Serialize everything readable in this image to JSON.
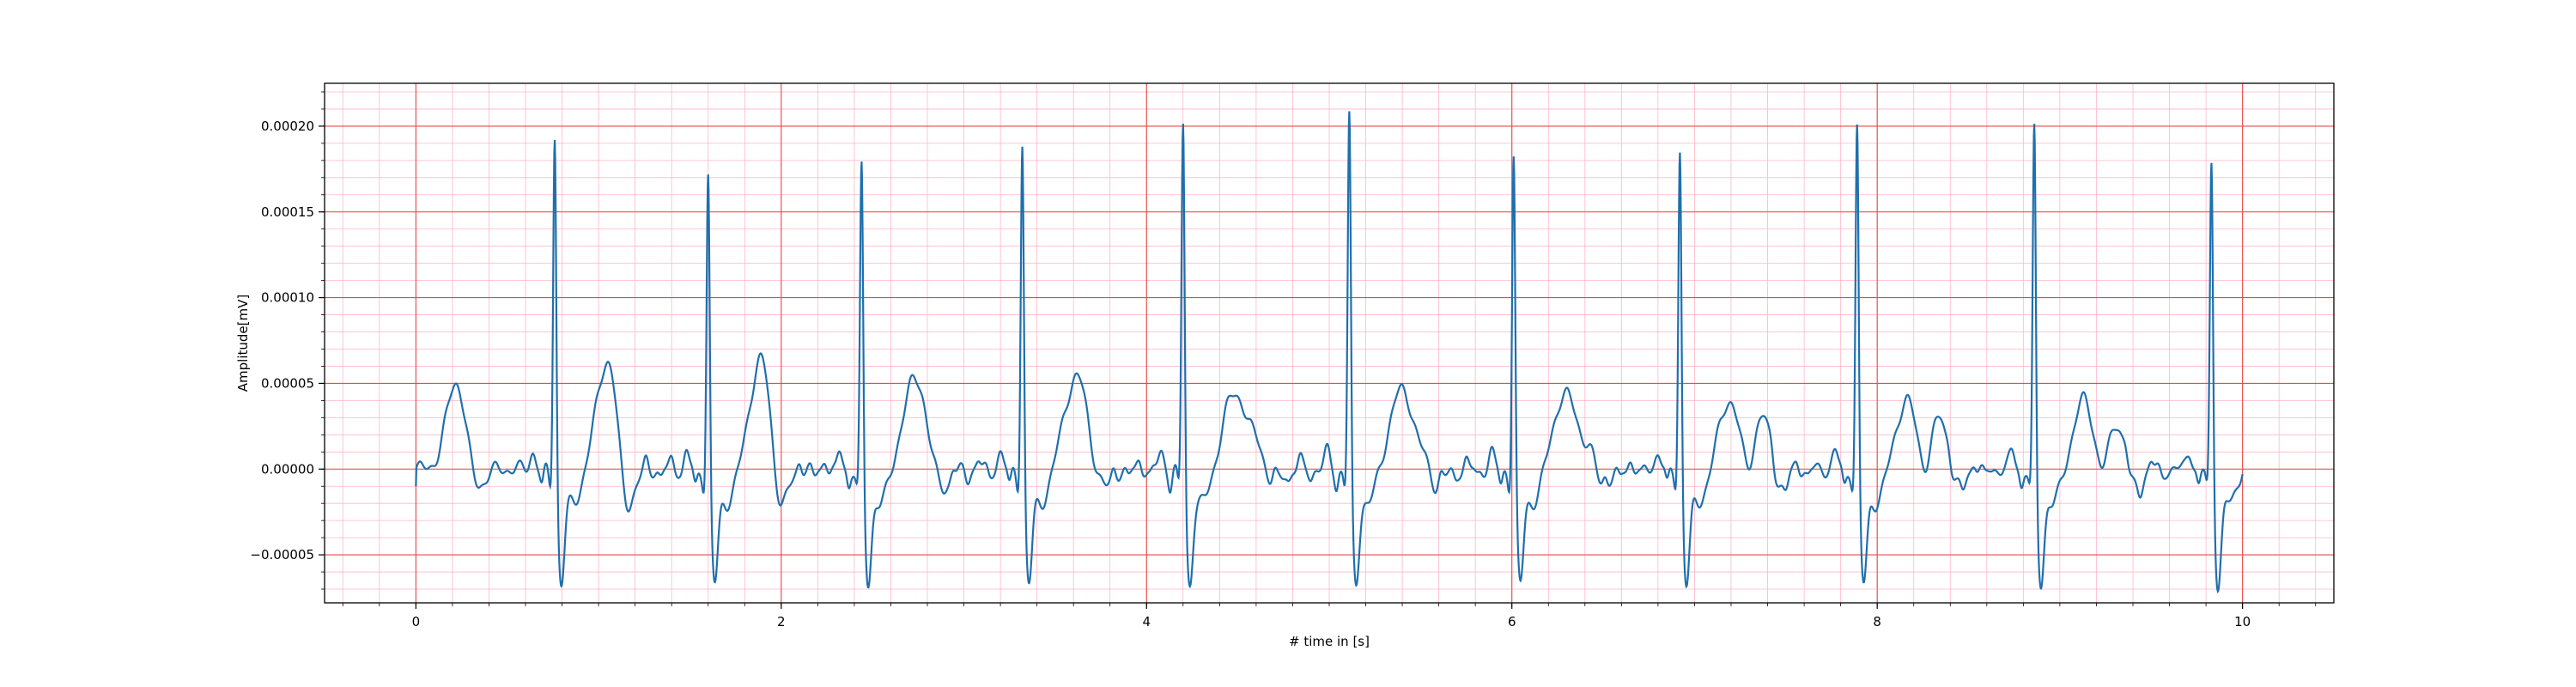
{
  "chart_data": {
    "type": "line",
    "title": "",
    "xlabel": "# time in [s]",
    "ylabel": "Amplitude[mV]",
    "xlim": [
      -0.5,
      10.5
    ],
    "ylim": [
      -7.8e-05,
      0.000225
    ],
    "x_ticks": [
      0,
      2,
      4,
      6,
      8,
      10
    ],
    "x_tick_labels": [
      "0",
      "2",
      "4",
      "6",
      "8",
      "10"
    ],
    "y_ticks": [
      -5e-05,
      0.0,
      5e-05,
      0.0001,
      0.00015,
      0.0002
    ],
    "y_tick_labels": [
      "−0.00005",
      "0.00000",
      "0.00005",
      "0.00010",
      "0.00015",
      "0.00020"
    ],
    "grid": "major and minor",
    "major_grid_color": "#e8484a",
    "minor_grid_color": "#ffb6c8",
    "line_color": "#1f6fad",
    "beats": [
      {
        "t": 0.76,
        "r": 0.000199
      },
      {
        "t": 1.6,
        "r": 0.000175
      },
      {
        "t": 2.44,
        "r": 0.000179
      },
      {
        "t": 3.32,
        "r": 0.000194
      },
      {
        "t": 4.2,
        "r": 0.000206
      },
      {
        "t": 5.11,
        "r": 0.00021
      },
      {
        "t": 6.01,
        "r": 0.000187
      },
      {
        "t": 6.92,
        "r": 0.00019
      },
      {
        "t": 7.89,
        "r": 0.000203
      },
      {
        "t": 8.86,
        "r": 0.000201
      },
      {
        "t": 9.83,
        "r": 0.000182
      }
    ],
    "t_start": 0,
    "t_end": 10
  }
}
